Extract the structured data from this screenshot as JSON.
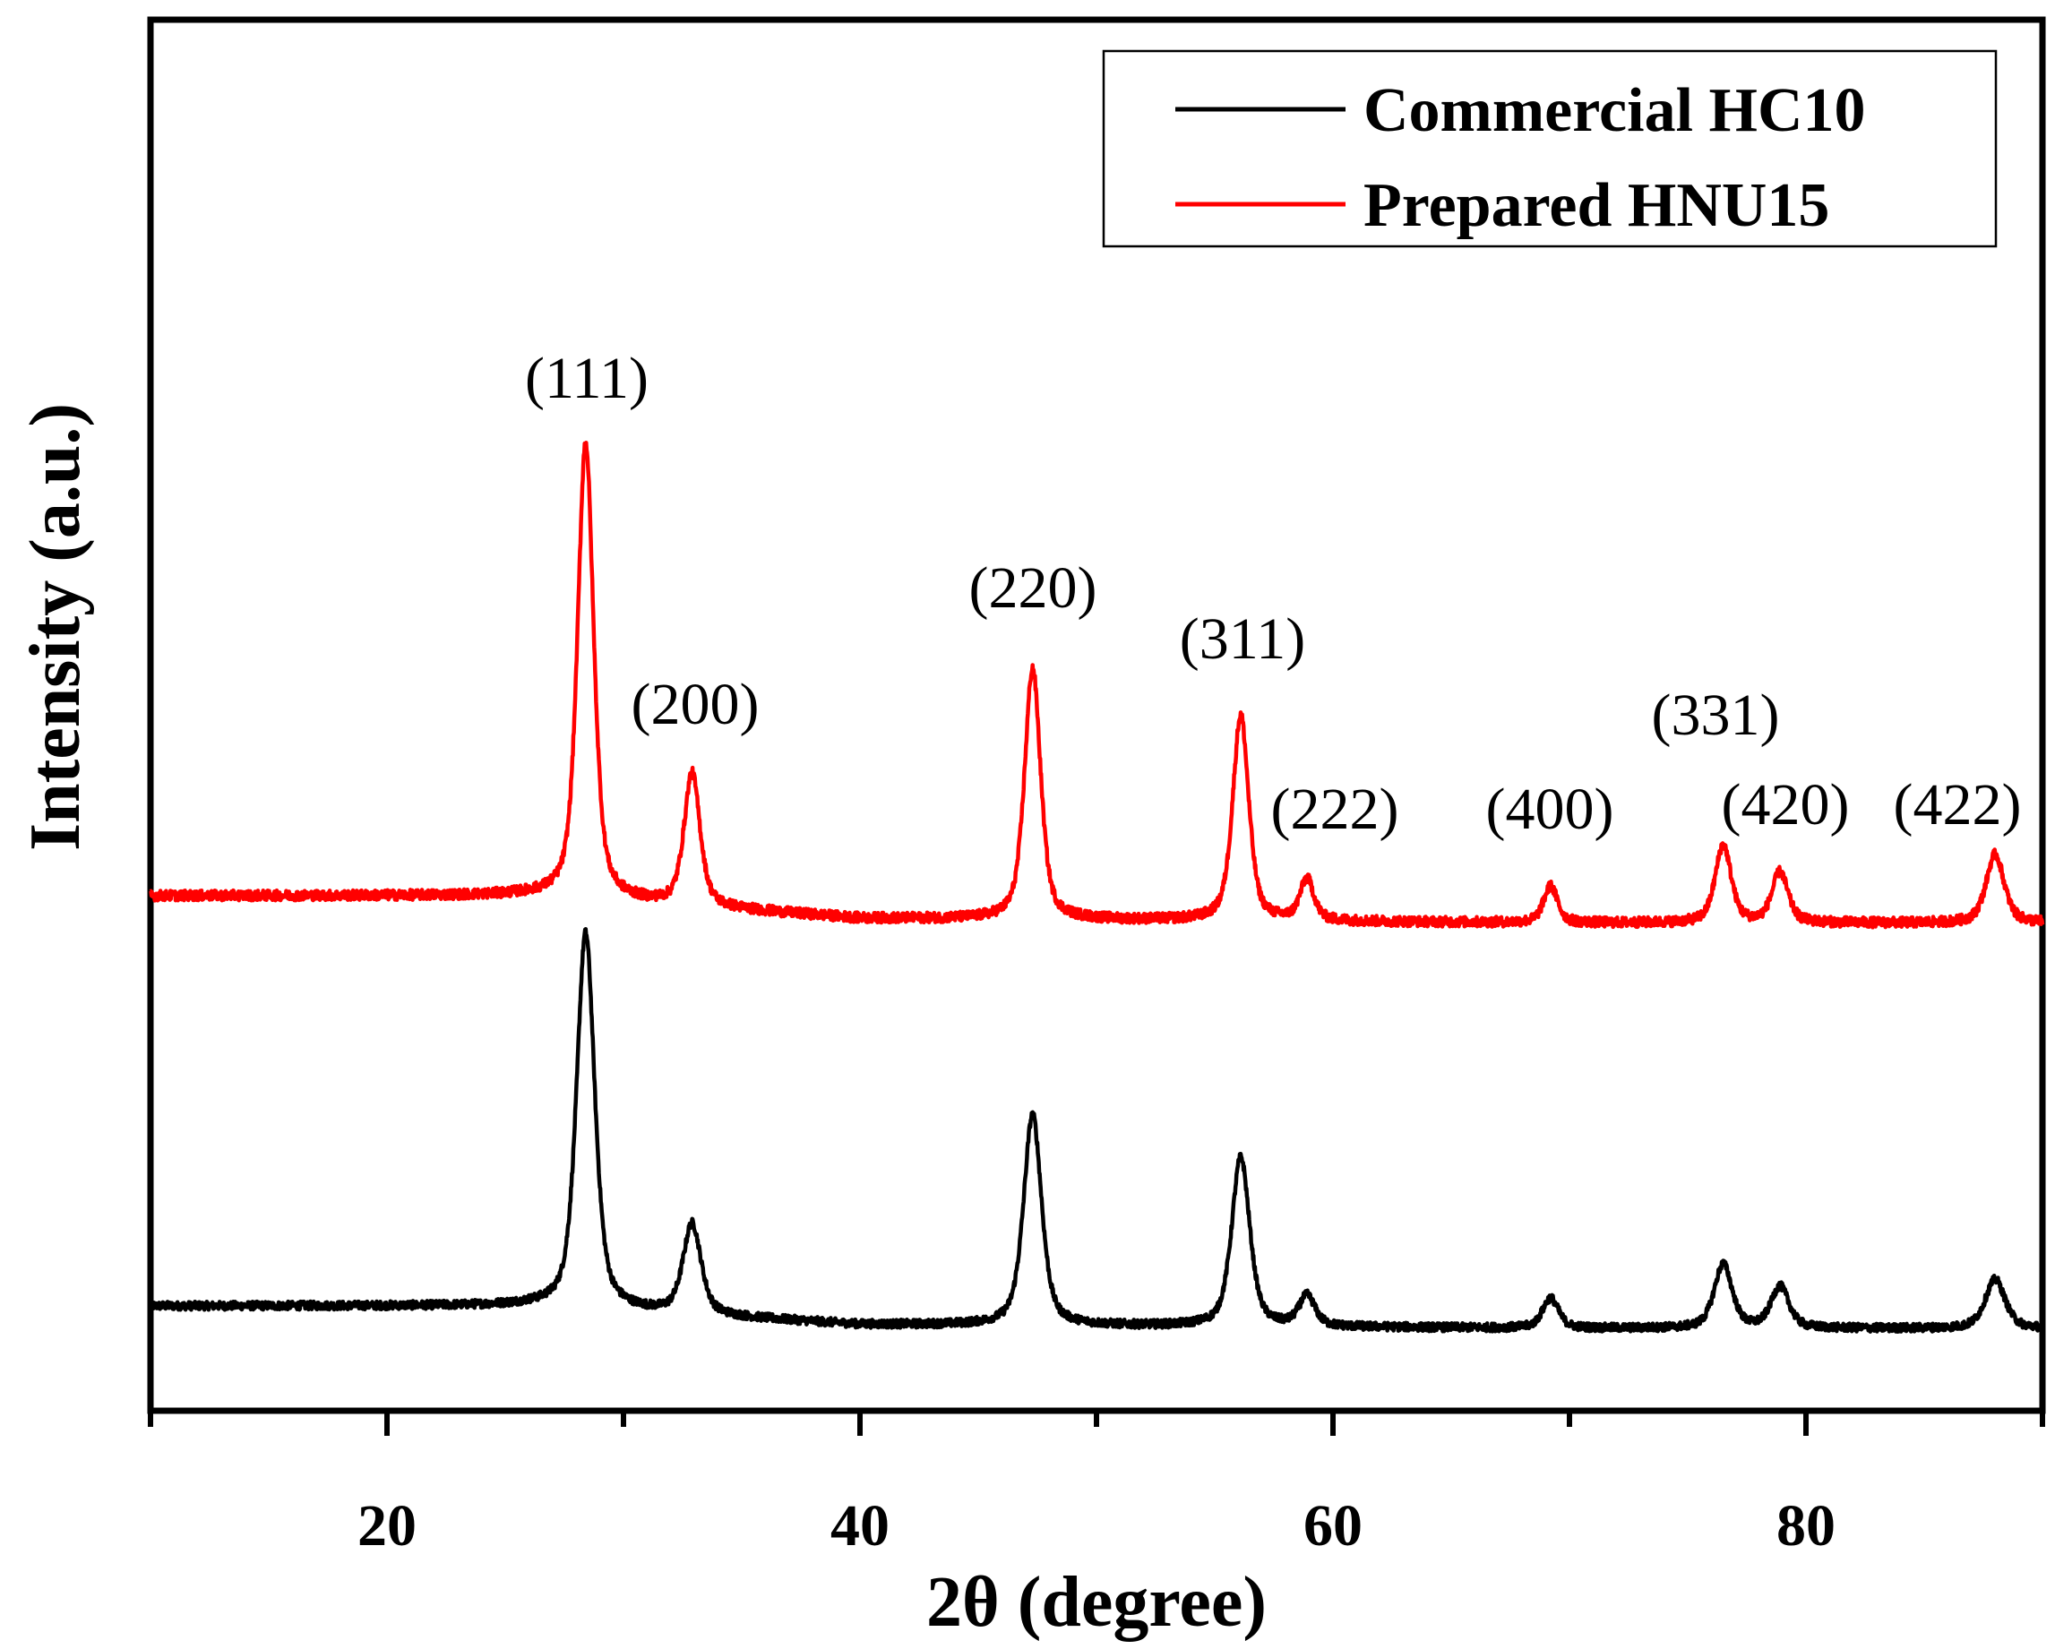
{
  "chart_data": {
    "type": "line",
    "xlabel": "2θ (degree)",
    "ylabel": "Intensity (a.u.)",
    "xlim": [
      10,
      90
    ],
    "xticks": [
      20,
      40,
      60,
      80
    ],
    "yticks": [],
    "grid": false,
    "legend_position": "top-right",
    "series": [
      {
        "name": "Commercial HC10",
        "color": "#000000",
        "baseline": [
          [
            10,
            0.0
          ],
          [
            26,
            0.0
          ],
          [
            40,
            -0.05
          ],
          [
            70,
            -0.06
          ],
          [
            90,
            -0.06
          ]
        ],
        "peaks": [
          {
            "x": 28.4,
            "height": 1.0,
            "width": 0.45
          },
          {
            "x": 32.9,
            "height": 0.24,
            "width": 0.45
          },
          {
            "x": 47.3,
            "height": 0.56,
            "width": 0.45
          },
          {
            "x": 56.1,
            "height": 0.45,
            "width": 0.45
          },
          {
            "x": 58.9,
            "height": 0.08,
            "width": 0.4
          },
          {
            "x": 69.2,
            "height": 0.08,
            "width": 0.4
          },
          {
            "x": 76.5,
            "height": 0.17,
            "width": 0.45
          },
          {
            "x": 78.9,
            "height": 0.11,
            "width": 0.45
          },
          {
            "x": 88.0,
            "height": 0.13,
            "width": 0.5
          }
        ]
      },
      {
        "name": "Prepared HNU15",
        "color": "#ff0000",
        "baseline": [
          [
            10,
            0.0
          ],
          [
            26,
            0.0
          ],
          [
            40,
            -0.05
          ],
          [
            70,
            -0.06
          ],
          [
            90,
            -0.06
          ]
        ],
        "peaks": [
          {
            "x": 28.4,
            "height": 1.0,
            "width": 0.4
          },
          {
            "x": 32.9,
            "height": 0.29,
            "width": 0.4
          },
          {
            "x": 47.3,
            "height": 0.55,
            "width": 0.4
          },
          {
            "x": 56.1,
            "height": 0.45,
            "width": 0.4
          },
          {
            "x": 58.9,
            "height": 0.09,
            "width": 0.35
          },
          {
            "x": 69.2,
            "height": 0.08,
            "width": 0.35
          },
          {
            "x": 76.5,
            "height": 0.17,
            "width": 0.4
          },
          {
            "x": 78.9,
            "height": 0.11,
            "width": 0.4
          },
          {
            "x": 88.0,
            "height": 0.15,
            "width": 0.45
          }
        ]
      }
    ],
    "annotations": [
      {
        "text": "(111)",
        "x": 28.4
      },
      {
        "text": "(200)",
        "x": 32.9
      },
      {
        "text": "(220)",
        "x": 47.3
      },
      {
        "text": "(311)",
        "x": 56.1
      },
      {
        "text": "(222)",
        "x": 59.2
      },
      {
        "text": "(400)",
        "x": 69.2
      },
      {
        "text": "(331)",
        "x": 76.5
      },
      {
        "text": "(420)",
        "x": 78.9
      },
      {
        "text": "(422)",
        "x": 88.0
      }
    ]
  }
}
